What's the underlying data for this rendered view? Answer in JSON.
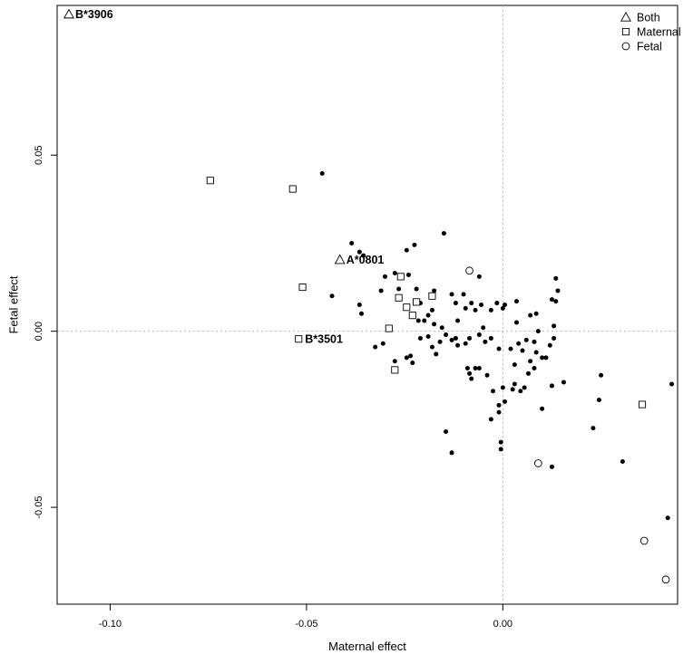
{
  "chart_data": {
    "type": "scatter",
    "xlabel": "Maternal effect",
    "ylabel": "Fetal effect",
    "xlim": [
      -0.1135,
      0.0445
    ],
    "ylim": [
      -0.0775,
      0.0925
    ],
    "x_ticks": [
      -0.1,
      -0.05,
      0.0
    ],
    "x_tick_labels": [
      "-0.10",
      "-0.05",
      "0.00"
    ],
    "y_ticks": [
      -0.05,
      0.0,
      0.05
    ],
    "y_tick_labels": [
      "-0.05",
      "0.00",
      "0.05"
    ],
    "reference_lines": {
      "x": 0,
      "y": 0,
      "style": "dotted"
    },
    "legend": {
      "position": "top-right",
      "entries": [
        {
          "label": "Both",
          "marker": "triangle"
        },
        {
          "label": "Maternal",
          "marker": "square"
        },
        {
          "label": "Fetal",
          "marker": "circle"
        }
      ]
    },
    "series": [
      {
        "marker": "triangle",
        "legend_label": "Both",
        "points": [
          {
            "x": -0.1105,
            "y": 0.09,
            "label": "B*3906"
          },
          {
            "x": -0.0415,
            "y": 0.0203,
            "label": "A*0801"
          }
        ]
      },
      {
        "marker": "square",
        "legend_label": "Maternal",
        "points": [
          {
            "x": -0.0745,
            "y": 0.0428
          },
          {
            "x": -0.0535,
            "y": 0.0404
          },
          {
            "x": -0.051,
            "y": 0.0125
          },
          {
            "x": -0.052,
            "y": -0.0022,
            "label": "B*3501"
          },
          {
            "x": -0.026,
            "y": 0.0155
          },
          {
            "x": -0.0265,
            "y": 0.0095
          },
          {
            "x": -0.0245,
            "y": 0.0068
          },
          {
            "x": -0.022,
            "y": 0.0083
          },
          {
            "x": -0.018,
            "y": 0.01
          },
          {
            "x": -0.023,
            "y": 0.0045
          },
          {
            "x": -0.029,
            "y": 0.0008
          },
          {
            "x": -0.0275,
            "y": -0.011
          },
          {
            "x": 0.0355,
            "y": -0.0208
          }
        ]
      },
      {
        "marker": "circle",
        "legend_label": "Fetal",
        "points": [
          {
            "x": -0.0085,
            "y": 0.0172
          },
          {
            "x": 0.009,
            "y": -0.0375
          },
          {
            "x": 0.036,
            "y": -0.0595
          },
          {
            "x": 0.0415,
            "y": -0.0705
          }
        ]
      },
      {
        "marker": "filled-circle",
        "points": [
          {
            "x": -0.046,
            "y": 0.0448
          },
          {
            "x": -0.0385,
            "y": 0.025
          },
          {
            "x": -0.0365,
            "y": 0.0225
          },
          {
            "x": -0.0355,
            "y": 0.0215
          },
          {
            "x": -0.0225,
            "y": 0.0245
          },
          {
            "x": -0.015,
            "y": 0.0278
          },
          {
            "x": -0.0245,
            "y": 0.023
          },
          {
            "x": -0.0435,
            "y": 0.01
          },
          {
            "x": -0.0365,
            "y": 0.0075
          },
          {
            "x": -0.036,
            "y": 0.005
          },
          {
            "x": -0.031,
            "y": 0.0115
          },
          {
            "x": -0.03,
            "y": 0.0155
          },
          {
            "x": -0.0275,
            "y": 0.0165
          },
          {
            "x": -0.0265,
            "y": 0.012
          },
          {
            "x": -0.024,
            "y": 0.016
          },
          {
            "x": -0.022,
            "y": 0.012
          },
          {
            "x": -0.021,
            "y": 0.008
          },
          {
            "x": -0.019,
            "y": 0.0045
          },
          {
            "x": -0.0175,
            "y": 0.0115
          },
          {
            "x": -0.018,
            "y": 0.006
          },
          {
            "x": -0.0175,
            "y": 0.002
          },
          {
            "x": -0.0155,
            "y": 0.001
          },
          {
            "x": -0.0145,
            "y": -0.001
          },
          {
            "x": -0.013,
            "y": 0.0105
          },
          {
            "x": -0.012,
            "y": 0.008
          },
          {
            "x": -0.0115,
            "y": 0.003
          },
          {
            "x": -0.01,
            "y": 0.0105
          },
          {
            "x": -0.0095,
            "y": 0.0065
          },
          {
            "x": -0.008,
            "y": 0.008
          },
          {
            "x": -0.006,
            "y": 0.0155
          },
          {
            "x": -0.0055,
            "y": 0.0075
          },
          {
            "x": -0.007,
            "y": 0.006
          },
          {
            "x": -0.005,
            "y": 0.001
          },
          {
            "x": -0.003,
            "y": 0.006
          },
          {
            "x": -0.0015,
            "y": 0.008
          },
          {
            "x": 0.0005,
            "y": 0.0075
          },
          {
            "x": 0.0,
            "y": 0.0065
          },
          {
            "x": 0.0035,
            "y": 0.0085
          },
          {
            "x": 0.0035,
            "y": 0.0025
          },
          {
            "x": 0.007,
            "y": 0.0045
          },
          {
            "x": 0.0085,
            "y": 0.005
          },
          {
            "x": 0.009,
            "y": 0.0
          },
          {
            "x": 0.0125,
            "y": 0.009
          },
          {
            "x": 0.0135,
            "y": 0.015
          },
          {
            "x": 0.014,
            "y": 0.0115
          },
          {
            "x": 0.0135,
            "y": 0.0085
          },
          {
            "x": 0.013,
            "y": 0.0015
          },
          {
            "x": 0.013,
            "y": -0.002
          },
          {
            "x": 0.012,
            "y": -0.004
          },
          {
            "x": 0.011,
            "y": -0.0075
          },
          {
            "x": 0.01,
            "y": -0.0075
          },
          {
            "x": 0.0085,
            "y": -0.006
          },
          {
            "x": 0.008,
            "y": -0.003
          },
          {
            "x": 0.007,
            "y": -0.0085
          },
          {
            "x": 0.006,
            "y": -0.0025
          },
          {
            "x": 0.005,
            "y": -0.0055
          },
          {
            "x": 0.004,
            "y": -0.0035
          },
          {
            "x": 0.003,
            "y": -0.0095
          },
          {
            "x": 0.002,
            "y": -0.005
          },
          {
            "x": -0.001,
            "y": -0.005
          },
          {
            "x": -0.003,
            "y": -0.002
          },
          {
            "x": -0.0045,
            "y": -0.003
          },
          {
            "x": -0.006,
            "y": -0.001
          },
          {
            "x": -0.0085,
            "y": -0.002
          },
          {
            "x": -0.0095,
            "y": -0.0035
          },
          {
            "x": -0.0115,
            "y": -0.004
          },
          {
            "x": -0.012,
            "y": -0.002
          },
          {
            "x": -0.013,
            "y": -0.0025
          },
          {
            "x": -0.016,
            "y": -0.003
          },
          {
            "x": -0.018,
            "y": -0.0045
          },
          {
            "x": -0.019,
            "y": -0.0015
          },
          {
            "x": -0.021,
            "y": -0.002
          },
          {
            "x": -0.0215,
            "y": 0.003
          },
          {
            "x": -0.02,
            "y": 0.003
          },
          {
            "x": -0.017,
            "y": -0.0065
          },
          {
            "x": -0.0235,
            "y": -0.007
          },
          {
            "x": -0.0245,
            "y": -0.0075
          },
          {
            "x": -0.0305,
            "y": -0.0035
          },
          {
            "x": -0.0325,
            "y": -0.0045
          },
          {
            "x": -0.023,
            "y": -0.009
          },
          {
            "x": -0.0275,
            "y": -0.0085
          },
          {
            "x": -0.009,
            "y": -0.0105
          },
          {
            "x": -0.0085,
            "y": -0.012
          },
          {
            "x": -0.007,
            "y": -0.0105
          },
          {
            "x": -0.006,
            "y": -0.0105
          },
          {
            "x": -0.004,
            "y": -0.0125
          },
          {
            "x": -0.008,
            "y": -0.0135
          },
          {
            "x": -0.0025,
            "y": -0.017
          },
          {
            "x": 0.0,
            "y": -0.016
          },
          {
            "x": 0.0025,
            "y": -0.0165
          },
          {
            "x": 0.003,
            "y": -0.015
          },
          {
            "x": 0.0045,
            "y": -0.017
          },
          {
            "x": 0.0055,
            "y": -0.016
          },
          {
            "x": 0.0065,
            "y": -0.012
          },
          {
            "x": 0.008,
            "y": -0.0105
          },
          {
            "x": 0.0125,
            "y": -0.0155
          },
          {
            "x": 0.0155,
            "y": -0.0145
          },
          {
            "x": -0.001,
            "y": -0.021
          },
          {
            "x": 0.0005,
            "y": -0.02
          },
          {
            "x": -0.001,
            "y": -0.023
          },
          {
            "x": -0.003,
            "y": -0.025
          },
          {
            "x": 0.01,
            "y": -0.022
          },
          {
            "x": -0.0145,
            "y": -0.0285
          },
          {
            "x": -0.013,
            "y": -0.0345
          },
          {
            "x": -0.0005,
            "y": -0.0315
          },
          {
            "x": -0.0005,
            "y": -0.0335
          },
          {
            "x": 0.0125,
            "y": -0.0385
          },
          {
            "x": 0.025,
            "y": -0.0125
          },
          {
            "x": 0.0245,
            "y": -0.0195
          },
          {
            "x": 0.023,
            "y": -0.0275
          },
          {
            "x": 0.0305,
            "y": -0.037
          },
          {
            "x": 0.043,
            "y": -0.015
          },
          {
            "x": 0.042,
            "y": -0.053
          }
        ]
      }
    ]
  }
}
